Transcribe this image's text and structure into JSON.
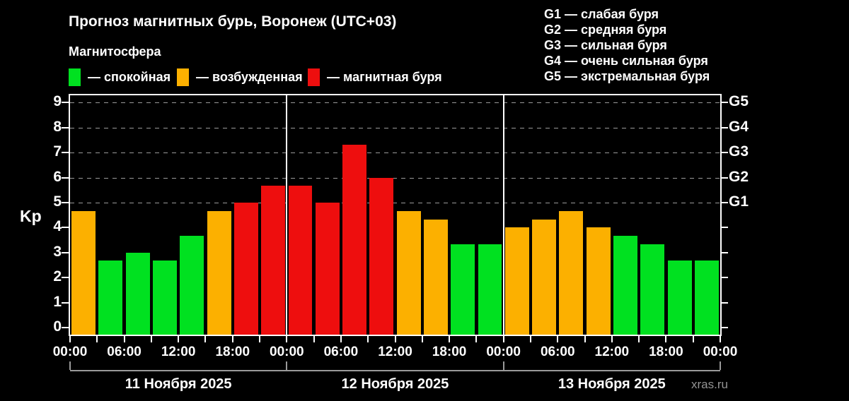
{
  "title": "Прогноз магнитных бурь, Воронеж (UTC+03)",
  "subtitle": "Магнитосфера",
  "legend": [
    {
      "name": "quiet",
      "label": "— спокойная",
      "color": "#00e120"
    },
    {
      "name": "active",
      "label": "— возбужденная",
      "color": "#fcb000"
    },
    {
      "name": "storm",
      "label": "— магнитная буря",
      "color": "#ee0e0e"
    }
  ],
  "g_legend": [
    "G1 — слабая буря",
    "G2 — средняя буря",
    "G3 — сильная буря",
    "G4 — очень сильная буря",
    "G5 — экстремальная буря"
  ],
  "watermark": "xras.ru",
  "chart_data": {
    "type": "bar",
    "ylabel": "Kp",
    "ylim": [
      0,
      9
    ],
    "y_ticks": [
      0,
      1,
      2,
      3,
      4,
      5,
      6,
      7,
      8,
      9
    ],
    "gridlines_at": [
      5,
      6,
      7,
      8,
      9
    ],
    "right_axis_labels": [
      {
        "value": 5,
        "label": "G1"
      },
      {
        "value": 6,
        "label": "G2"
      },
      {
        "value": 7,
        "label": "G3"
      },
      {
        "value": 8,
        "label": "G4"
      },
      {
        "value": 9,
        "label": "G5"
      }
    ],
    "x_tick_labels": [
      "00:00",
      "06:00",
      "12:00",
      "18:00",
      "00:00",
      "06:00",
      "12:00",
      "18:00",
      "00:00",
      "06:00",
      "12:00",
      "18:00",
      "00:00"
    ],
    "hours_per_bar": 3,
    "days": [
      {
        "date": "11 Ноября 2025",
        "values": [
          4.67,
          2.67,
          3.0,
          2.67,
          3.67,
          4.67,
          5.0,
          5.67
        ]
      },
      {
        "date": "12 Ноября 2025",
        "values": [
          5.67,
          5.0,
          7.33,
          6.0,
          4.67,
          4.33,
          3.33,
          3.33
        ]
      },
      {
        "date": "13 Ноября 2025",
        "values": [
          4.0,
          4.33,
          4.67,
          4.0,
          3.67,
          3.33,
          2.67,
          2.67
        ]
      }
    ],
    "colors": {
      "quiet": "#00e120",
      "active": "#fcb000",
      "storm": "#ee0e0e"
    },
    "thresholds": {
      "active_min": 4.0,
      "storm_min": 5.0
    }
  }
}
